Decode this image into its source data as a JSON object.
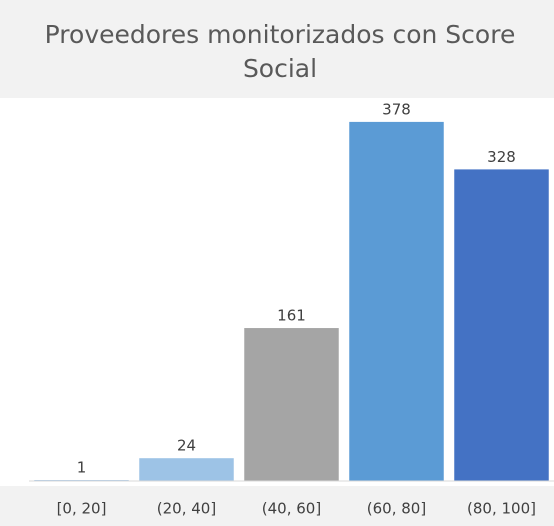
{
  "chart_data": {
    "type": "bar",
    "title": "Proveedores monitorizados con Score Social",
    "categories": [
      "[0, 20]",
      "(20, 40]",
      "(40, 60]",
      "(60, 80]",
      "(80, 100]"
    ],
    "values": [
      1,
      24,
      161,
      378,
      328
    ],
    "colors": [
      "#9dc3e6",
      "#9dc3e6",
      "#a5a5a5",
      "#5b9bd5",
      "#4472c4"
    ],
    "ylim": [
      0,
      400
    ]
  }
}
